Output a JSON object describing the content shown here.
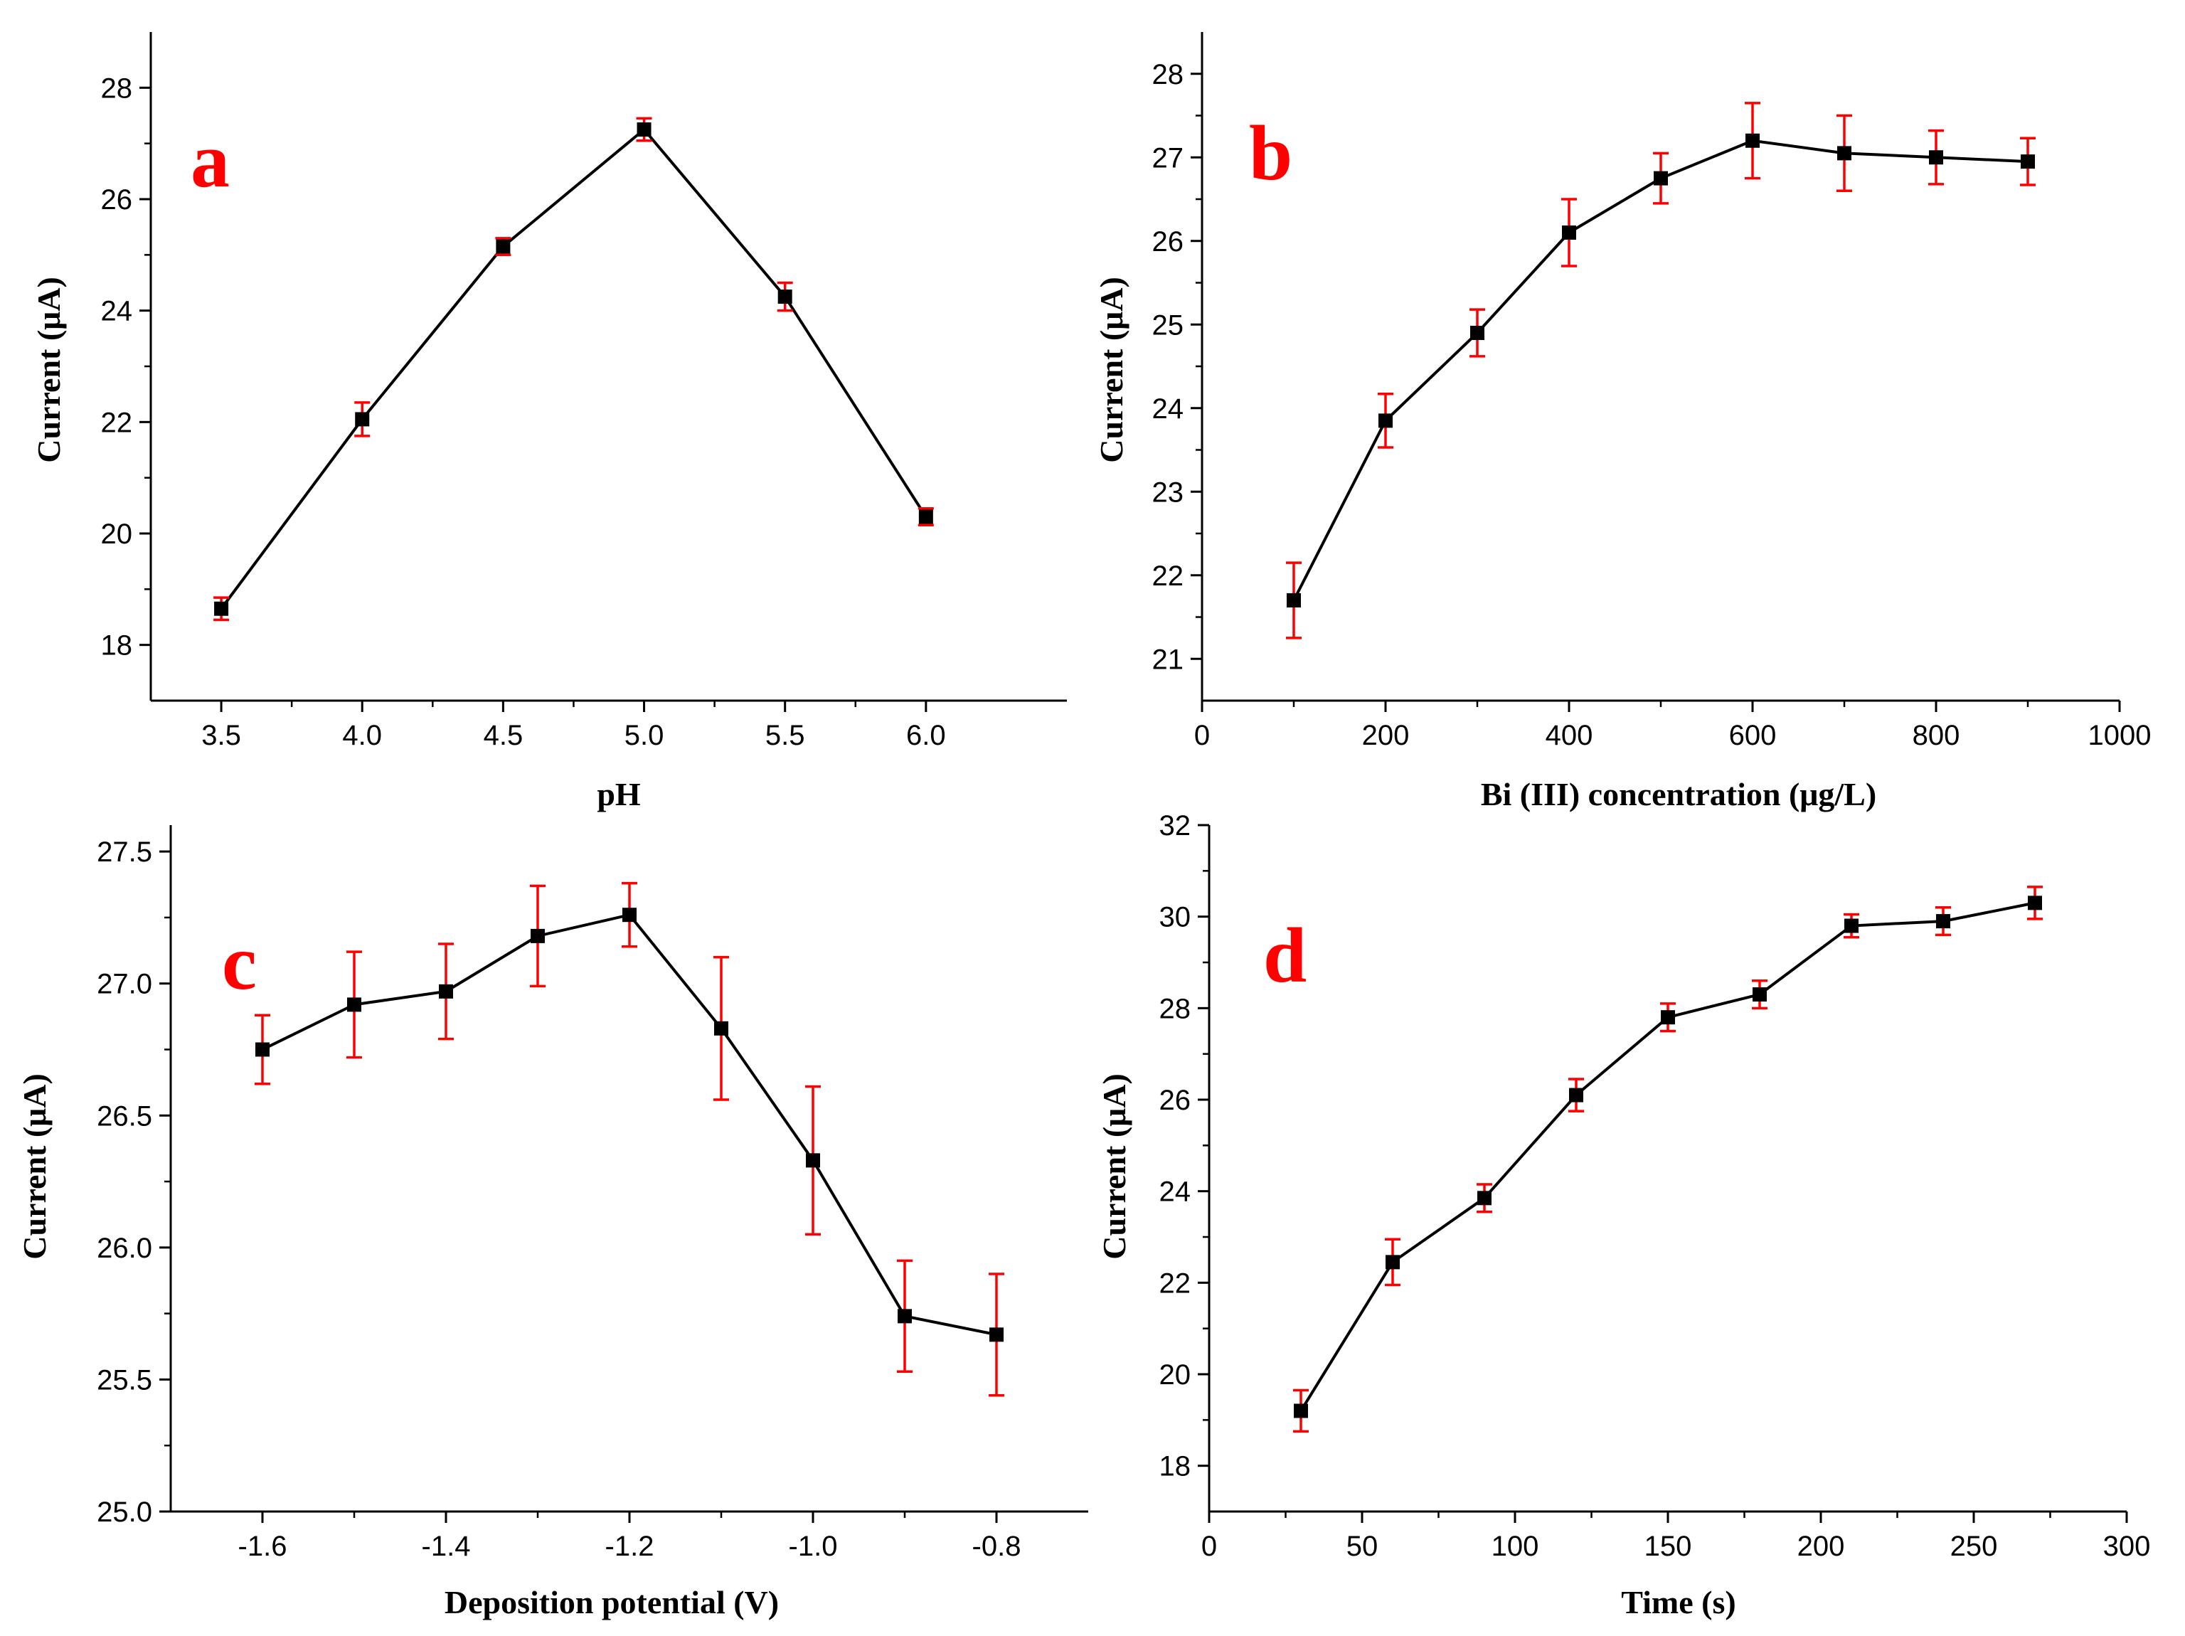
{
  "figure": {
    "background": "#ffffff",
    "line_color": "#000000",
    "error_color": "#ff0000"
  },
  "chart_data": [
    {
      "id": "a",
      "type": "line",
      "panel_label": "a",
      "title": "",
      "xlabel": "pH",
      "ylabel": "Current (μA)",
      "xlim": [
        3.25,
        6.5
      ],
      "ylim": [
        17,
        29
      ],
      "xticks": [
        3.5,
        4.0,
        4.5,
        5.0,
        5.5,
        6.0
      ],
      "xtick_labels": [
        "3.5",
        "4.0",
        "4.5",
        "5.0",
        "5.5",
        "6.0"
      ],
      "yticks": [
        18,
        20,
        22,
        24,
        26,
        28
      ],
      "ytick_labels": [
        "18",
        "20",
        "22",
        "24",
        "26",
        "28"
      ],
      "x": [
        3.5,
        4.0,
        4.5,
        5.0,
        5.5,
        6.0
      ],
      "y": [
        18.65,
        22.05,
        25.15,
        27.25,
        24.25,
        20.3
      ],
      "yerr": [
        0.2,
        0.3,
        0.15,
        0.2,
        0.25,
        0.15
      ]
    },
    {
      "id": "b",
      "type": "line",
      "panel_label": "b",
      "title": "",
      "xlabel": "Bi (III) concentration (μg/L)",
      "ylabel": "Current (μA)",
      "xlim": [
        0,
        1000
      ],
      "ylim": [
        20.5,
        28.5
      ],
      "xticks": [
        0,
        200,
        400,
        600,
        800,
        1000
      ],
      "xtick_labels": [
        "0",
        "200",
        "400",
        "600",
        "800",
        "1000"
      ],
      "yticks": [
        21,
        22,
        23,
        24,
        25,
        26,
        27,
        28
      ],
      "ytick_labels": [
        "21",
        "22",
        "23",
        "24",
        "25",
        "26",
        "27",
        "28"
      ],
      "x": [
        100,
        200,
        300,
        400,
        500,
        600,
        700,
        800,
        900
      ],
      "y": [
        21.7,
        23.85,
        24.9,
        26.1,
        26.75,
        27.2,
        27.05,
        27.0,
        26.95
      ],
      "yerr": [
        0.45,
        0.32,
        0.28,
        0.4,
        0.3,
        0.45,
        0.45,
        0.32,
        0.28
      ]
    },
    {
      "id": "c",
      "type": "line",
      "panel_label": "c",
      "title": "",
      "xlabel": "Deposition potential (V)",
      "ylabel": "Current (μA)",
      "xlim": [
        -1.7,
        -0.7
      ],
      "ylim": [
        25.0,
        27.6
      ],
      "xticks": [
        -1.6,
        -1.4,
        -1.2,
        -1.0,
        -0.8
      ],
      "xtick_labels": [
        "-1.6",
        "-1.4",
        "-1.2",
        "-1.0",
        "-0.8"
      ],
      "yticks": [
        25.0,
        25.5,
        26.0,
        26.5,
        27.0,
        27.5
      ],
      "ytick_labels": [
        "25.0",
        "25.5",
        "26.0",
        "26.5",
        "27.0",
        "27.5"
      ],
      "x": [
        -1.6,
        -1.5,
        -1.4,
        -1.3,
        -1.2,
        -1.1,
        -1.0,
        -0.9,
        -0.8
      ],
      "y": [
        26.75,
        26.92,
        26.97,
        27.18,
        27.26,
        26.83,
        26.33,
        25.74,
        25.67
      ],
      "yerr": [
        0.13,
        0.2,
        0.18,
        0.19,
        0.12,
        0.27,
        0.28,
        0.21,
        0.23
      ]
    },
    {
      "id": "d",
      "type": "line",
      "panel_label": "d",
      "title": "",
      "xlabel": "Time (s)",
      "ylabel": "Current (μA)",
      "xlim": [
        0,
        300
      ],
      "ylim": [
        17,
        32
      ],
      "xticks": [
        0,
        50,
        100,
        150,
        200,
        250,
        300
      ],
      "xtick_labels": [
        "0",
        "50",
        "100",
        "150",
        "200",
        "250",
        "300"
      ],
      "yticks": [
        18,
        20,
        22,
        24,
        26,
        28,
        30,
        32
      ],
      "ytick_labels": [
        "18",
        "20",
        "22",
        "24",
        "26",
        "28",
        "30",
        "32"
      ],
      "x": [
        30,
        60,
        90,
        120,
        150,
        180,
        210,
        240,
        270
      ],
      "y": [
        19.2,
        22.45,
        23.85,
        26.1,
        27.8,
        28.3,
        29.8,
        29.9,
        30.3
      ],
      "yerr": [
        0.45,
        0.5,
        0.3,
        0.35,
        0.3,
        0.3,
        0.25,
        0.3,
        0.35
      ]
    }
  ]
}
